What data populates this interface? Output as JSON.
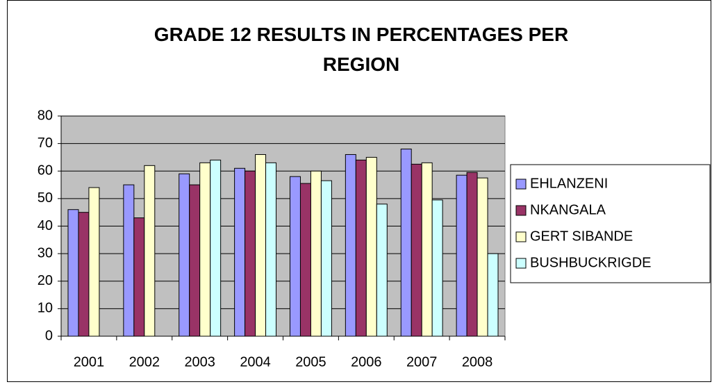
{
  "chart_data": {
    "type": "bar",
    "title": "GRADE 12 RESULTS IN PERCENTAGES PER REGION",
    "categories": [
      "2001",
      "2002",
      "2003",
      "2004",
      "2005",
      "2006",
      "2007",
      "2008"
    ],
    "series": [
      {
        "name": "EHLANZENI",
        "color": "#9999ff",
        "values": [
          46,
          55,
          59,
          61,
          58,
          66,
          68,
          58.5
        ]
      },
      {
        "name": "NKANGALA",
        "color": "#993366",
        "values": [
          45,
          43,
          55,
          60,
          55.5,
          64,
          62.5,
          59.5
        ]
      },
      {
        "name": "GERT SIBANDE",
        "color": "#ffffcc",
        "values": [
          54,
          62,
          63,
          66,
          60,
          65,
          63,
          57.5
        ]
      },
      {
        "name": "BUSHBUCKRIGDE",
        "color": "#ccffff",
        "values": [
          null,
          null,
          64,
          63,
          56.5,
          48,
          49.5,
          30
        ]
      }
    ],
    "ylim": [
      0,
      80
    ],
    "yticks": [
      0,
      10,
      20,
      30,
      40,
      50,
      60,
      70,
      80
    ],
    "grid": true,
    "legend": "right",
    "plot_background": "#c0c0c0"
  }
}
